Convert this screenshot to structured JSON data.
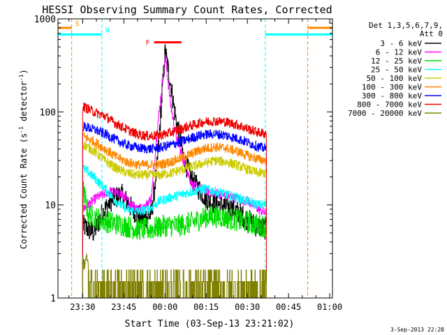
{
  "chart_data": {
    "type": "line",
    "title": "HESSI Observing Summary Count Rates, Corrected",
    "xlabel": "Start Time (03-Sep-13 23:21:02)",
    "ylabel_main": "Corrected Count Rate (s",
    "ylabel_sup1": "-1",
    "ylabel_mid": " detector",
    "ylabel_sup2": "-1",
    "ylabel_end": ")",
    "yscale": "log",
    "ylim": [
      1,
      1000
    ],
    "xlim_minutes": [
      1401,
      1501
    ],
    "x_ticks": [
      {
        "label": "23:30",
        "minute": 1410
      },
      {
        "label": "23:45",
        "minute": 1425
      },
      {
        "label": "00:00",
        "minute": 1440
      },
      {
        "label": "00:15",
        "minute": 1455
      },
      {
        "label": "00:30",
        "minute": 1470
      },
      {
        "label": "00:45",
        "minute": 1485
      },
      {
        "label": "01:00",
        "minute": 1500
      }
    ],
    "y_ticks": [
      {
        "label": "1",
        "value": 1
      },
      {
        "label": "10",
        "value": 10
      },
      {
        "label": "100",
        "value": 100
      },
      {
        "label": "1000",
        "value": 1000
      }
    ],
    "legend": {
      "position": "right",
      "header1": "Det 1,3,5,6,7,9,",
      "header2": "Att 0"
    },
    "series": [
      {
        "name": "3 - 6 keV",
        "color": "#000000",
        "points": [
          [
            1410,
            6
          ],
          [
            1414,
            5
          ],
          [
            1417,
            8
          ],
          [
            1420,
            11
          ],
          [
            1424,
            13
          ],
          [
            1428,
            9
          ],
          [
            1432,
            7
          ],
          [
            1435,
            8
          ],
          [
            1437,
            25
          ],
          [
            1440,
            450
          ],
          [
            1442,
            200
          ],
          [
            1444,
            80
          ],
          [
            1447,
            30
          ],
          [
            1450,
            18
          ],
          [
            1453,
            14
          ],
          [
            1456,
            11
          ],
          [
            1460,
            10
          ],
          [
            1465,
            9
          ],
          [
            1470,
            7
          ],
          [
            1473,
            6
          ],
          [
            1477,
            5.5
          ]
        ]
      },
      {
        "name": "6 - 12 keV",
        "color": "#ff00ff",
        "points": [
          [
            1410,
            9
          ],
          [
            1415,
            12
          ],
          [
            1420,
            14
          ],
          [
            1424,
            13
          ],
          [
            1428,
            10
          ],
          [
            1432,
            9
          ],
          [
            1435,
            12
          ],
          [
            1437,
            60
          ],
          [
            1440,
            400
          ],
          [
            1442,
            120
          ],
          [
            1444,
            55
          ],
          [
            1447,
            28
          ],
          [
            1450,
            16
          ],
          [
            1453,
            15
          ],
          [
            1456,
            14
          ],
          [
            1460,
            13
          ],
          [
            1465,
            12
          ],
          [
            1470,
            11
          ],
          [
            1474,
            9
          ],
          [
            1477,
            8
          ]
        ]
      },
      {
        "name": "12 - 25 keV",
        "color": "#00dd00",
        "points": [
          [
            1410,
            15
          ],
          [
            1412,
            8
          ],
          [
            1416,
            7
          ],
          [
            1420,
            6.5
          ],
          [
            1425,
            6
          ],
          [
            1430,
            5.5
          ],
          [
            1435,
            5.5
          ],
          [
            1440,
            6
          ],
          [
            1445,
            6
          ],
          [
            1450,
            6.5
          ],
          [
            1455,
            7.5
          ],
          [
            1460,
            7.5
          ],
          [
            1465,
            7
          ],
          [
            1470,
            6.5
          ],
          [
            1474,
            6
          ],
          [
            1477,
            6
          ]
        ]
      },
      {
        "name": "25 - 50 keV",
        "color": "#00ffff",
        "points": [
          [
            1410,
            25
          ],
          [
            1414,
            20
          ],
          [
            1418,
            15
          ],
          [
            1422,
            11
          ],
          [
            1426,
            9
          ],
          [
            1430,
            8.5
          ],
          [
            1434,
            9
          ],
          [
            1438,
            11
          ],
          [
            1442,
            12
          ],
          [
            1446,
            13
          ],
          [
            1450,
            14
          ],
          [
            1454,
            15
          ],
          [
            1458,
            14
          ],
          [
            1462,
            13
          ],
          [
            1466,
            12
          ],
          [
            1470,
            11
          ],
          [
            1474,
            10
          ],
          [
            1477,
            10
          ]
        ]
      },
      {
        "name": "50 - 100 keV",
        "color": "#cccc00",
        "points": [
          [
            1410,
            45
          ],
          [
            1414,
            38
          ],
          [
            1418,
            30
          ],
          [
            1422,
            25
          ],
          [
            1426,
            22
          ],
          [
            1430,
            21
          ],
          [
            1434,
            21
          ],
          [
            1438,
            21
          ],
          [
            1442,
            22
          ],
          [
            1446,
            24
          ],
          [
            1450,
            26
          ],
          [
            1454,
            28
          ],
          [
            1458,
            30
          ],
          [
            1462,
            29
          ],
          [
            1466,
            27
          ],
          [
            1470,
            24
          ],
          [
            1474,
            22
          ],
          [
            1477,
            22
          ]
        ]
      },
      {
        "name": "100 - 300 keV",
        "color": "#ff8800",
        "points": [
          [
            1410,
            55
          ],
          [
            1414,
            48
          ],
          [
            1418,
            40
          ],
          [
            1422,
            33
          ],
          [
            1426,
            29
          ],
          [
            1430,
            27
          ],
          [
            1434,
            27
          ],
          [
            1438,
            27
          ],
          [
            1442,
            29
          ],
          [
            1446,
            32
          ],
          [
            1450,
            36
          ],
          [
            1454,
            40
          ],
          [
            1458,
            42
          ],
          [
            1462,
            41
          ],
          [
            1466,
            38
          ],
          [
            1470,
            34
          ],
          [
            1474,
            31
          ],
          [
            1477,
            30
          ]
        ]
      },
      {
        "name": "300 - 800 keV",
        "color": "#0000ff",
        "points": [
          [
            1410,
            70
          ],
          [
            1414,
            65
          ],
          [
            1418,
            58
          ],
          [
            1422,
            50
          ],
          [
            1426,
            44
          ],
          [
            1430,
            41
          ],
          [
            1434,
            40
          ],
          [
            1438,
            41
          ],
          [
            1442,
            44
          ],
          [
            1446,
            48
          ],
          [
            1450,
            53
          ],
          [
            1454,
            57
          ],
          [
            1458,
            58
          ],
          [
            1462,
            56
          ],
          [
            1466,
            52
          ],
          [
            1470,
            47
          ],
          [
            1474,
            42
          ],
          [
            1477,
            40
          ]
        ]
      },
      {
        "name": "800 - 7000 keV",
        "color": "#ee0000",
        "points": [
          [
            1410,
            115
          ],
          [
            1414,
            100
          ],
          [
            1418,
            90
          ],
          [
            1422,
            75
          ],
          [
            1426,
            65
          ],
          [
            1430,
            57
          ],
          [
            1434,
            55
          ],
          [
            1438,
            56
          ],
          [
            1442,
            60
          ],
          [
            1446,
            66
          ],
          [
            1450,
            72
          ],
          [
            1454,
            78
          ],
          [
            1458,
            80
          ],
          [
            1462,
            78
          ],
          [
            1466,
            73
          ],
          [
            1470,
            66
          ],
          [
            1474,
            60
          ],
          [
            1477,
            58
          ]
        ]
      },
      {
        "name": "7000 - 20000 keV",
        "color": "#808000",
        "points": [
          [
            1410,
            2.5
          ],
          [
            1412,
            2
          ],
          [
            1414,
            1.5
          ],
          [
            1416,
            1.2
          ],
          [
            1418,
            1
          ],
          [
            1420,
            1
          ],
          [
            1430,
            1
          ],
          [
            1445,
            1
          ],
          [
            1448,
            1.5
          ],
          [
            1450,
            2
          ],
          [
            1452,
            1.5
          ],
          [
            1455,
            2
          ],
          [
            1458,
            1.5
          ],
          [
            1460,
            2
          ],
          [
            1462,
            1.5
          ],
          [
            1465,
            2
          ],
          [
            1468,
            1.5
          ],
          [
            1470,
            1.5
          ],
          [
            1472,
            1
          ],
          [
            1477,
            1
          ]
        ]
      }
    ],
    "annotations": [
      {
        "label": "S",
        "color": "#ff8800",
        "line_minutes": [
          1406,
          1492
        ],
        "bar_value": 800,
        "dashed": true
      },
      {
        "label": "N",
        "color": "#00ffff",
        "line_minutes": [
          1417,
          1476.5
        ],
        "bar_value": 680,
        "dashed": true
      },
      {
        "label": "F",
        "color": "#ff0000",
        "bar_minutes": [
          1436,
          1446
        ],
        "bar_value": 560
      }
    ],
    "grid": false
  },
  "footer": {
    "date": "3-Sep-2013 22:28"
  }
}
